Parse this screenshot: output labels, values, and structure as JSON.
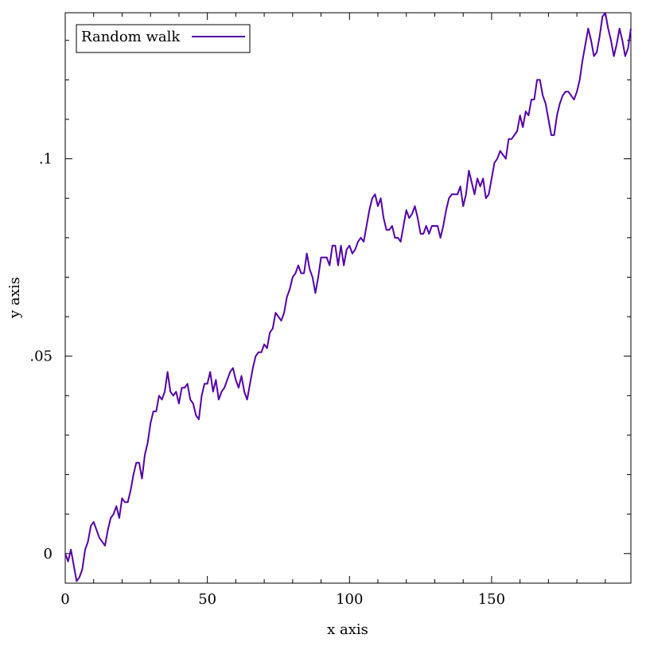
{
  "chart_data": {
    "type": "line",
    "xlabel": "x axis",
    "ylabel": "y axis",
    "xlim": [
      0,
      199
    ],
    "ylim": [
      -0.0075,
      0.137
    ],
    "x_ticks": [
      {
        "value": 0,
        "label": "0"
      },
      {
        "value": 50,
        "label": "50"
      },
      {
        "value": 100,
        "label": "100"
      },
      {
        "value": 150,
        "label": "150"
      }
    ],
    "y_ticks": [
      {
        "value": 0,
        "label": "0"
      },
      {
        "value": 0.05,
        "label": ".05"
      },
      {
        "value": 0.1,
        "label": ".1"
      }
    ],
    "legend": {
      "position": "top-left"
    },
    "series": [
      {
        "name": "Random walk",
        "color": "#5500aa",
        "values": [
          0.0,
          -0.002,
          0.001,
          -0.003,
          -0.007,
          -0.006,
          -0.004,
          0.001,
          0.003,
          0.007,
          0.008,
          0.006,
          0.004,
          0.003,
          0.002,
          0.006,
          0.009,
          0.01,
          0.012,
          0.009,
          0.014,
          0.013,
          0.013,
          0.016,
          0.02,
          0.023,
          0.023,
          0.019,
          0.025,
          0.028,
          0.033,
          0.036,
          0.036,
          0.04,
          0.039,
          0.041,
          0.046,
          0.041,
          0.04,
          0.041,
          0.038,
          0.042,
          0.042,
          0.043,
          0.039,
          0.038,
          0.035,
          0.034,
          0.04,
          0.043,
          0.043,
          0.046,
          0.041,
          0.044,
          0.039,
          0.041,
          0.042,
          0.044,
          0.046,
          0.047,
          0.044,
          0.042,
          0.045,
          0.041,
          0.039,
          0.043,
          0.047,
          0.05,
          0.051,
          0.051,
          0.053,
          0.052,
          0.056,
          0.057,
          0.061,
          0.06,
          0.059,
          0.061,
          0.065,
          0.067,
          0.07,
          0.071,
          0.073,
          0.071,
          0.071,
          0.076,
          0.072,
          0.07,
          0.066,
          0.07,
          0.075,
          0.075,
          0.075,
          0.073,
          0.078,
          0.078,
          0.073,
          0.078,
          0.073,
          0.077,
          0.078,
          0.076,
          0.077,
          0.079,
          0.08,
          0.079,
          0.083,
          0.087,
          0.09,
          0.091,
          0.088,
          0.09,
          0.085,
          0.082,
          0.082,
          0.083,
          0.08,
          0.08,
          0.079,
          0.083,
          0.087,
          0.085,
          0.086,
          0.088,
          0.085,
          0.081,
          0.081,
          0.083,
          0.081,
          0.083,
          0.083,
          0.083,
          0.08,
          0.083,
          0.087,
          0.09,
          0.091,
          0.091,
          0.091,
          0.093,
          0.088,
          0.091,
          0.097,
          0.094,
          0.091,
          0.095,
          0.093,
          0.095,
          0.09,
          0.091,
          0.095,
          0.099,
          0.1,
          0.102,
          0.101,
          0.1,
          0.105,
          0.105,
          0.106,
          0.107,
          0.111,
          0.108,
          0.112,
          0.111,
          0.115,
          0.115,
          0.12,
          0.12,
          0.116,
          0.114,
          0.11,
          0.106,
          0.106,
          0.111,
          0.114,
          0.116,
          0.117,
          0.117,
          0.116,
          0.115,
          0.117,
          0.12,
          0.125,
          0.129,
          0.133,
          0.13,
          0.126,
          0.127,
          0.131,
          0.136,
          0.137,
          0.133,
          0.13,
          0.126,
          0.129,
          0.133,
          0.13,
          0.126,
          0.128,
          0.133
        ]
      }
    ]
  }
}
